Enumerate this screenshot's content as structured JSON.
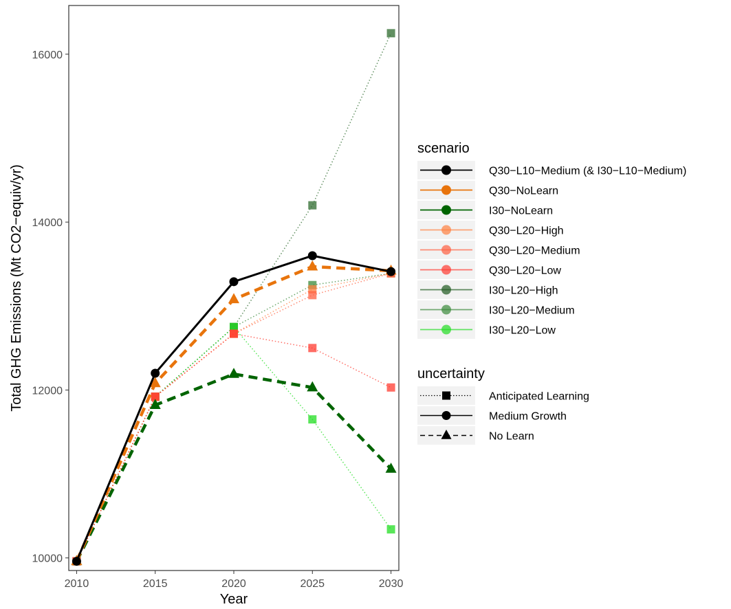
{
  "chart_data": {
    "type": "line",
    "xlabel": "Year",
    "ylabel": "Total GHG Emissions (Mt CO2−equiv/yr)",
    "x": [
      2010,
      2015,
      2020,
      2025,
      2030
    ],
    "xlim": [
      2009.5,
      2030.5
    ],
    "ylim": [
      9850,
      16580
    ],
    "x_ticks": [
      2010,
      2015,
      2020,
      2025,
      2030
    ],
    "y_ticks": [
      10000,
      12000,
      14000,
      16000
    ],
    "grid": false,
    "legend_placement": "right",
    "series": [
      {
        "name": "I30−L20−High",
        "color": "#2e6b2e",
        "alpha": 0.75,
        "uncertainty": "Anticipated Learning",
        "values": [
          9960,
          11920,
          12750,
          14200,
          16250
        ]
      },
      {
        "name": "I30−L20−Medium",
        "color": "#3a8a3a",
        "alpha": 0.75,
        "uncertainty": "Anticipated Learning",
        "values": [
          9960,
          11920,
          12750,
          13250,
          13390
        ]
      },
      {
        "name": "I30−L20−Low",
        "color": "#22dd22",
        "alpha": 0.75,
        "uncertainty": "Anticipated Learning",
        "values": [
          9960,
          11920,
          12750,
          11650,
          10340
        ]
      },
      {
        "name": "Q30−L20−High",
        "color": "#ff8040",
        "alpha": 0.75,
        "uncertainty": "Anticipated Learning",
        "values": [
          9960,
          11920,
          12670,
          13200,
          13390
        ]
      },
      {
        "name": "Q30−L20−Medium",
        "color": "#ff6040",
        "alpha": 0.75,
        "uncertainty": "Anticipated Learning",
        "values": [
          9960,
          11920,
          12670,
          13130,
          13390
        ]
      },
      {
        "name": "Q30−L20−Low",
        "color": "#ff3b30",
        "alpha": 0.75,
        "uncertainty": "Anticipated Learning",
        "values": [
          9960,
          11920,
          12670,
          12500,
          12030
        ]
      },
      {
        "name": "I30−NoLearn",
        "color": "#006400",
        "alpha": 1,
        "uncertainty": "No Learn",
        "values": [
          9960,
          11820,
          12190,
          12030,
          11060
        ]
      },
      {
        "name": "Q30−NoLearn",
        "color": "#e8740c",
        "alpha": 1,
        "uncertainty": "No Learn",
        "values": [
          9960,
          12080,
          13080,
          13470,
          13420
        ]
      },
      {
        "name": "Q30−L10−Medium (& I30−L10−Medium)",
        "color": "#000000",
        "alpha": 1,
        "uncertainty": "Medium Growth",
        "values": [
          9960,
          12200,
          13290,
          13600,
          13410
        ]
      }
    ],
    "legends": [
      {
        "title": "scenario",
        "entries": [
          {
            "label": "Q30−L10−Medium (& I30−L10−Medium)",
            "color": "#000000",
            "alpha": 1
          },
          {
            "label": "Q30−NoLearn",
            "color": "#e8740c",
            "alpha": 1
          },
          {
            "label": "I30−NoLearn",
            "color": "#006400",
            "alpha": 1
          },
          {
            "label": "Q30−L20−High",
            "color": "#ff8040",
            "alpha": 0.7
          },
          {
            "label": "Q30−L20−Medium",
            "color": "#ff6040",
            "alpha": 0.7
          },
          {
            "label": "Q30−L20−Low",
            "color": "#ff3b30",
            "alpha": 0.7
          },
          {
            "label": "I30−L20−High",
            "color": "#1f5a1f",
            "alpha": 0.7
          },
          {
            "label": "I30−L20−Medium",
            "color": "#3a8a3a",
            "alpha": 0.7
          },
          {
            "label": "I30−L20−Low",
            "color": "#22dd22",
            "alpha": 0.7
          }
        ]
      },
      {
        "title": "uncertainty",
        "entries": [
          {
            "label": "Anticipated Learning",
            "linetype": "dotted",
            "shape": "square"
          },
          {
            "label": "Medium Growth",
            "linetype": "solid",
            "shape": "circle"
          },
          {
            "label": "No Learn",
            "linetype": "dashed",
            "shape": "triangle"
          }
        ]
      }
    ]
  }
}
